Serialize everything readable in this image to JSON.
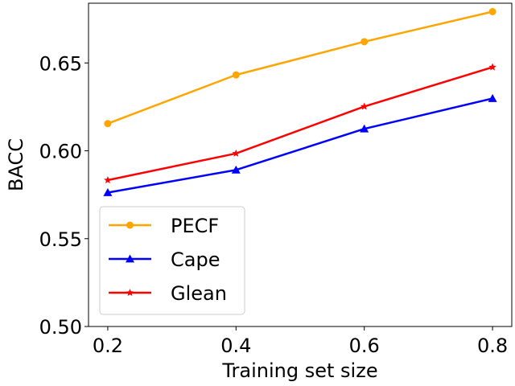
{
  "chart_data": {
    "type": "line",
    "title": "",
    "xlabel": "Training set size",
    "ylabel": "BACC",
    "x": [
      0.2,
      0.4,
      0.6,
      0.8
    ],
    "xticks": [
      "0.2",
      "0.4",
      "0.6",
      "0.8"
    ],
    "yticks": [
      "0.50",
      "0.55",
      "0.60",
      "0.65"
    ],
    "xlim": [
      0.17,
      0.83
    ],
    "ylim": [
      0.5,
      0.684
    ],
    "grid": false,
    "legend_position": "lower-left",
    "series": [
      {
        "name": "PECF",
        "color": "#FFA500",
        "marker": "circle",
        "values": [
          0.6155,
          0.6432,
          0.6621,
          0.6792
        ]
      },
      {
        "name": "Cape",
        "color": "#0000FF",
        "marker": "triangle",
        "values": [
          0.5762,
          0.5891,
          0.6125,
          0.6298
        ]
      },
      {
        "name": "Glean",
        "color": "#FF0000",
        "marker": "star",
        "values": [
          0.5833,
          0.5985,
          0.6252,
          0.6476
        ]
      }
    ]
  }
}
